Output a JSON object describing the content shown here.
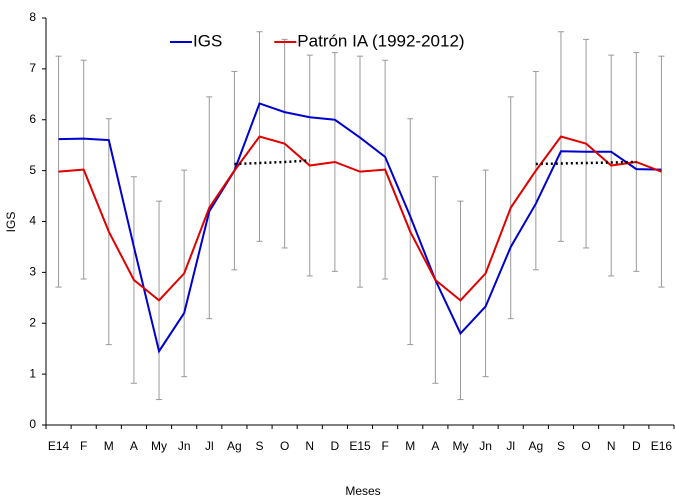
{
  "chart_data": {
    "type": "line",
    "xlabel": "Meses",
    "ylabel": "IGS",
    "categories": [
      "E14",
      "F",
      "M",
      "A",
      "My",
      "Jn",
      "Jl",
      "Ag",
      "S",
      "O",
      "N",
      "D",
      "E15",
      "F",
      "M",
      "A",
      "My",
      "Jn",
      "Jl",
      "Ag",
      "S",
      "O",
      "N",
      "D",
      "E16"
    ],
    "series": [
      {
        "name": "IGS",
        "color": "#0000cc",
        "values": [
          5.62,
          5.63,
          5.6,
          3.5,
          1.45,
          2.2,
          4.2,
          5.0,
          6.32,
          6.15,
          6.05,
          6.0,
          5.65,
          5.27,
          4.1,
          2.85,
          1.8,
          2.33,
          3.5,
          4.35,
          5.38,
          5.37,
          5.37,
          5.03,
          5.02
        ]
      },
      {
        "name": "Patrón IA (1992-2012)",
        "color": "#e00000",
        "values": [
          4.98,
          5.02,
          3.8,
          2.85,
          2.45,
          2.98,
          4.27,
          5.0,
          5.67,
          5.53,
          5.1,
          5.17,
          4.98,
          5.02,
          3.8,
          2.85,
          2.45,
          2.98,
          4.27,
          5.0,
          5.67,
          5.53,
          5.1,
          5.17,
          4.98
        ],
        "errors": [
          2.27,
          2.15,
          2.22,
          2.03,
          1.95,
          2.03,
          2.18,
          1.95,
          2.06,
          2.05,
          2.17,
          2.15,
          2.27,
          2.15,
          2.22,
          2.03,
          1.95,
          2.03,
          2.18,
          1.95,
          2.06,
          2.05,
          2.17,
          2.15,
          2.27
        ]
      },
      {
        "color": "#000000",
        "dash": "dotted",
        "values": [
          null,
          null,
          null,
          null,
          null,
          null,
          null,
          5.13,
          5.15,
          5.17,
          5.2,
          null,
          null,
          null,
          null,
          null,
          null,
          null,
          null,
          5.13,
          5.14,
          5.15,
          5.16,
          5.17,
          null
        ]
      }
    ],
    "error_color": "#999999",
    "ylim": [
      0,
      8
    ],
    "yticks": [
      0,
      1,
      2,
      3,
      4,
      5,
      6,
      7,
      8
    ],
    "grid": false,
    "legend": "top"
  }
}
